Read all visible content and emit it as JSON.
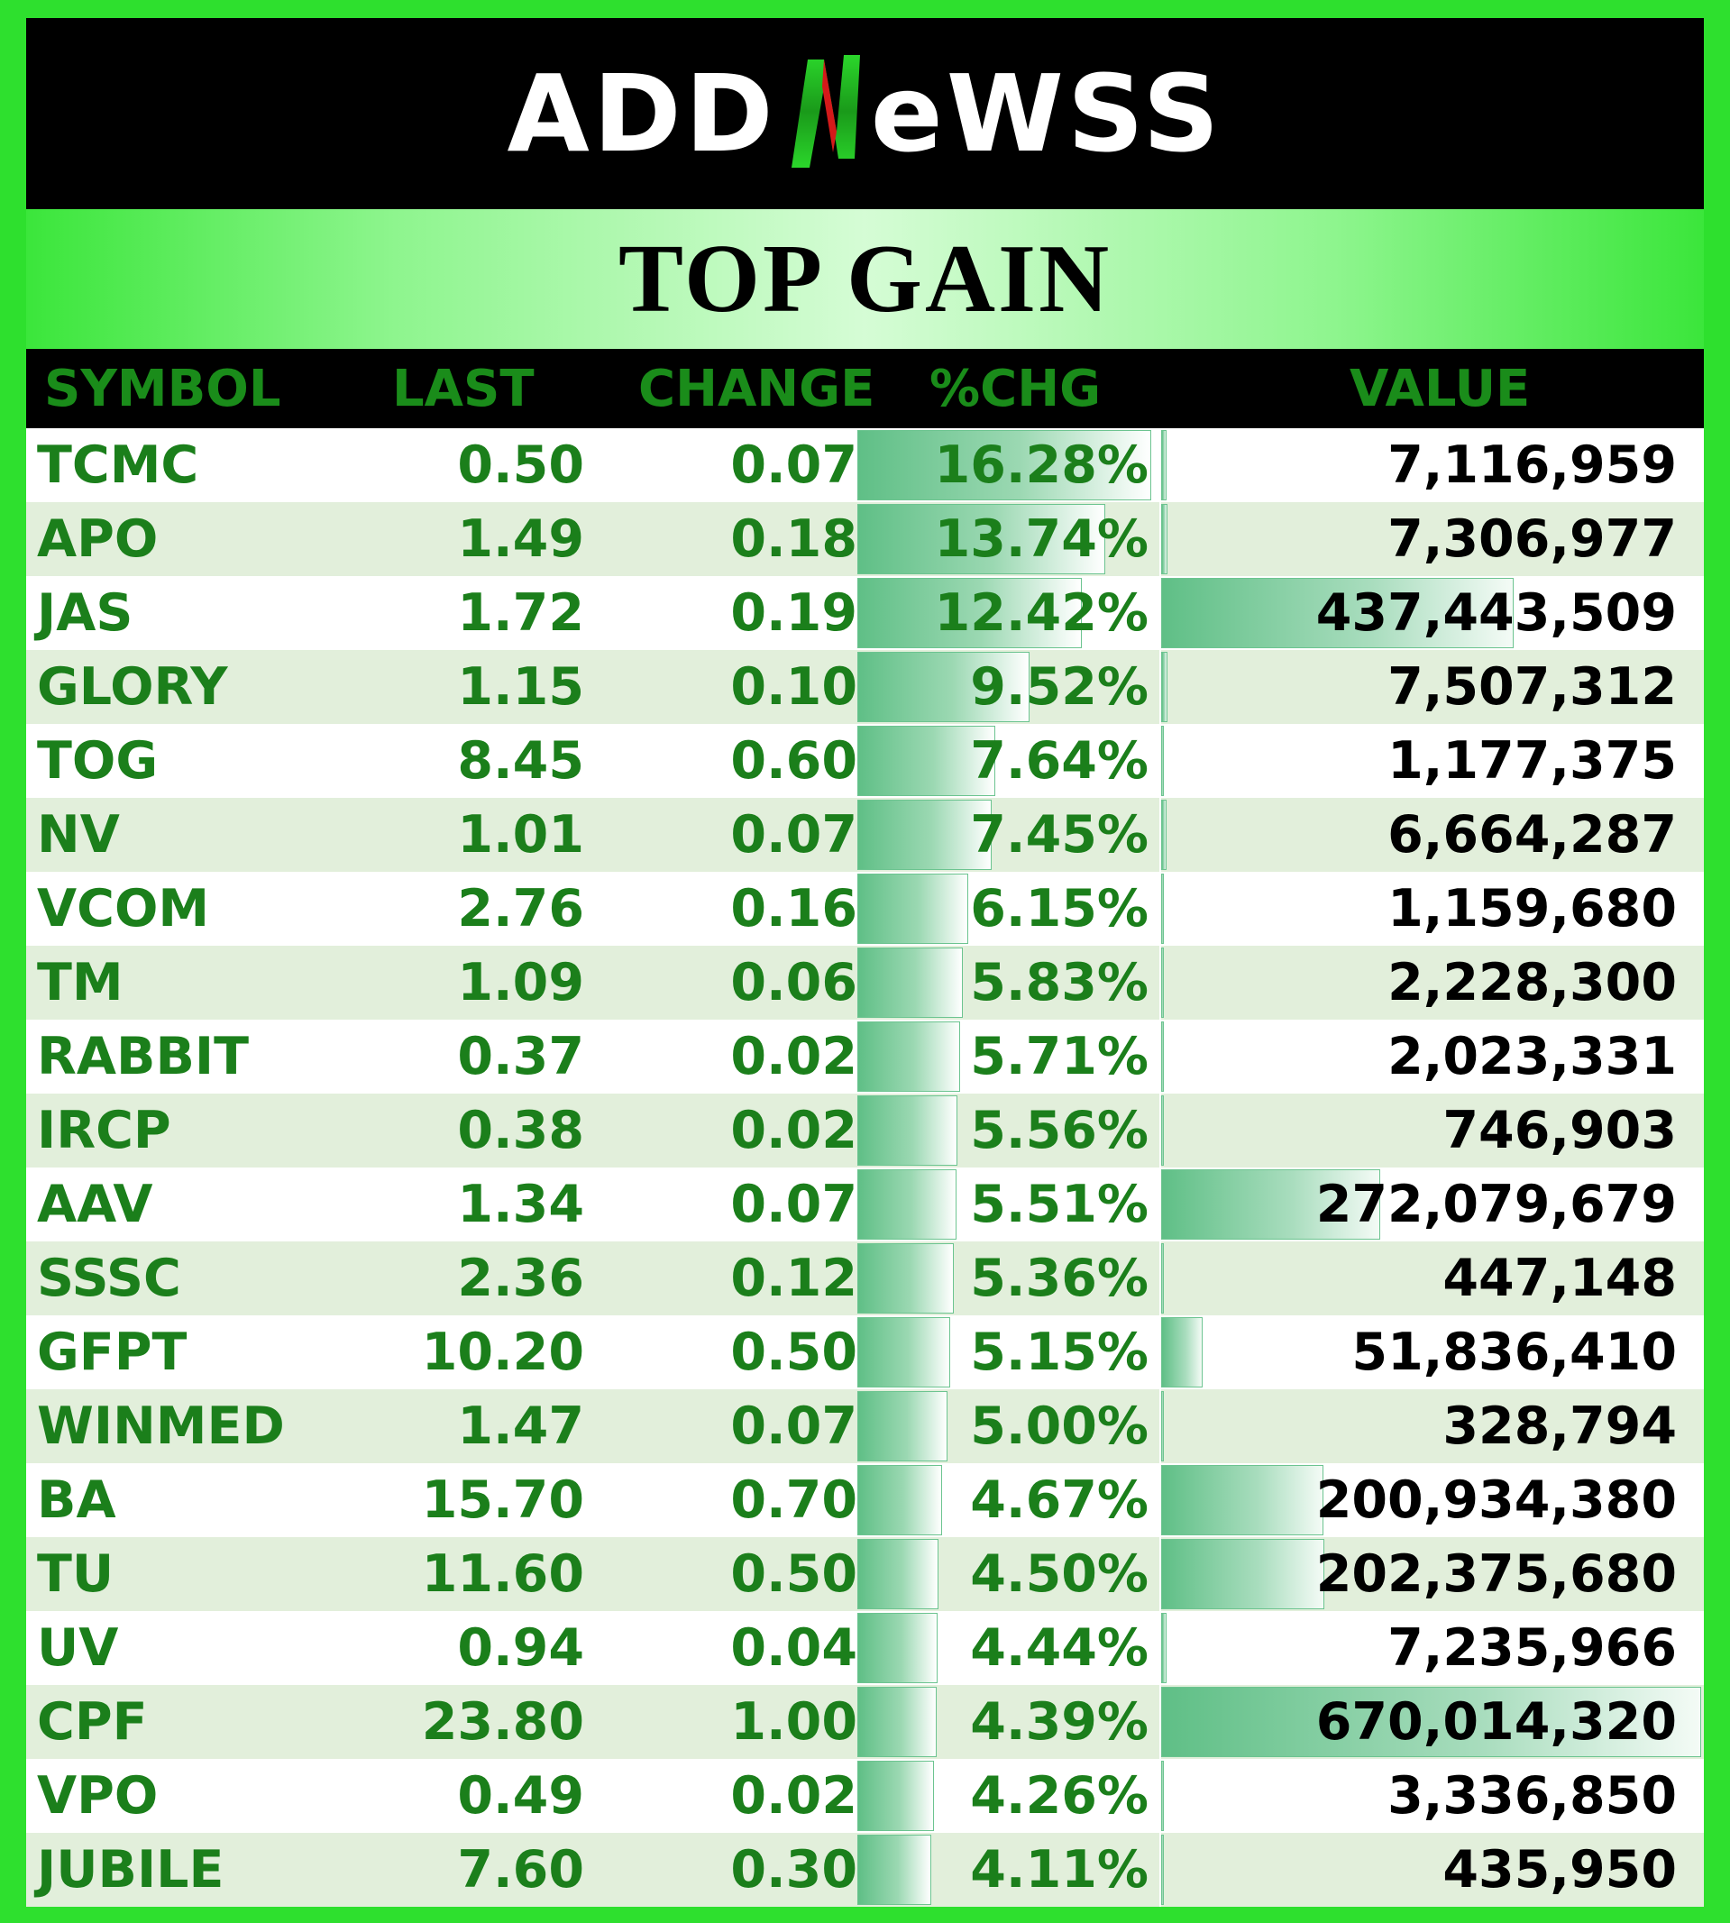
{
  "brand": {
    "logo_text": "ADDNeWSS"
  },
  "title": "TOP GAIN",
  "columns": {
    "symbol": "SYMBOL",
    "last": "LAST",
    "change": "CHANGE",
    "pctchg": "%CHG",
    "value": "VALUE"
  },
  "colors": {
    "accent_green": "#1b7f1b",
    "frame_green": "#2ee02e",
    "header_bg": "#000000",
    "row_alt": "#e2efdb",
    "bar_green": "#5fbf86"
  },
  "rows": [
    {
      "symbol": "TCMC",
      "last": "0.50",
      "change": "0.07",
      "pct": "16.28%",
      "pct_num": 16.28,
      "value": "7,116,959",
      "value_num": 7116959
    },
    {
      "symbol": "APO",
      "last": "1.49",
      "change": "0.18",
      "pct": "13.74%",
      "pct_num": 13.74,
      "value": "7,306,977",
      "value_num": 7306977
    },
    {
      "symbol": "JAS",
      "last": "1.72",
      "change": "0.19",
      "pct": "12.42%",
      "pct_num": 12.42,
      "value": "437,443,509",
      "value_num": 437443509
    },
    {
      "symbol": "GLORY",
      "last": "1.15",
      "change": "0.10",
      "pct": "9.52%",
      "pct_num": 9.52,
      "value": "7,507,312",
      "value_num": 7507312
    },
    {
      "symbol": "TOG",
      "last": "8.45",
      "change": "0.60",
      "pct": "7.64%",
      "pct_num": 7.64,
      "value": "1,177,375",
      "value_num": 1177375
    },
    {
      "symbol": "NV",
      "last": "1.01",
      "change": "0.07",
      "pct": "7.45%",
      "pct_num": 7.45,
      "value": "6,664,287",
      "value_num": 6664287
    },
    {
      "symbol": "VCOM",
      "last": "2.76",
      "change": "0.16",
      "pct": "6.15%",
      "pct_num": 6.15,
      "value": "1,159,680",
      "value_num": 1159680
    },
    {
      "symbol": "TM",
      "last": "1.09",
      "change": "0.06",
      "pct": "5.83%",
      "pct_num": 5.83,
      "value": "2,228,300",
      "value_num": 2228300
    },
    {
      "symbol": "RABBIT",
      "last": "0.37",
      "change": "0.02",
      "pct": "5.71%",
      "pct_num": 5.71,
      "value": "2,023,331",
      "value_num": 2023331
    },
    {
      "symbol": "IRCP",
      "last": "0.38",
      "change": "0.02",
      "pct": "5.56%",
      "pct_num": 5.56,
      "value": "746,903",
      "value_num": 746903
    },
    {
      "symbol": "AAV",
      "last": "1.34",
      "change": "0.07",
      "pct": "5.51%",
      "pct_num": 5.51,
      "value": "272,079,679",
      "value_num": 272079679
    },
    {
      "symbol": "SSSC",
      "last": "2.36",
      "change": "0.12",
      "pct": "5.36%",
      "pct_num": 5.36,
      "value": "447,148",
      "value_num": 447148
    },
    {
      "symbol": "GFPT",
      "last": "10.20",
      "change": "0.50",
      "pct": "5.15%",
      "pct_num": 5.15,
      "value": "51,836,410",
      "value_num": 51836410
    },
    {
      "symbol": "WINMED",
      "last": "1.47",
      "change": "0.07",
      "pct": "5.00%",
      "pct_num": 5.0,
      "value": "328,794",
      "value_num": 328794
    },
    {
      "symbol": "BA",
      "last": "15.70",
      "change": "0.70",
      "pct": "4.67%",
      "pct_num": 4.67,
      "value": "200,934,380",
      "value_num": 200934380
    },
    {
      "symbol": "TU",
      "last": "11.60",
      "change": "0.50",
      "pct": "4.50%",
      "pct_num": 4.5,
      "value": "202,375,680",
      "value_num": 202375680
    },
    {
      "symbol": "UV",
      "last": "0.94",
      "change": "0.04",
      "pct": "4.44%",
      "pct_num": 4.44,
      "value": "7,235,966",
      "value_num": 7235966
    },
    {
      "symbol": "CPF",
      "last": "23.80",
      "change": "1.00",
      "pct": "4.39%",
      "pct_num": 4.39,
      "value": "670,014,320",
      "value_num": 670014320
    },
    {
      "symbol": "VPO",
      "last": "0.49",
      "change": "0.02",
      "pct": "4.26%",
      "pct_num": 4.26,
      "value": "3,336,850",
      "value_num": 3336850
    },
    {
      "symbol": "JUBILE",
      "last": "7.60",
      "change": "0.30",
      "pct": "4.11%",
      "pct_num": 4.11,
      "value": "435,950",
      "value_num": 435950
    }
  ]
}
